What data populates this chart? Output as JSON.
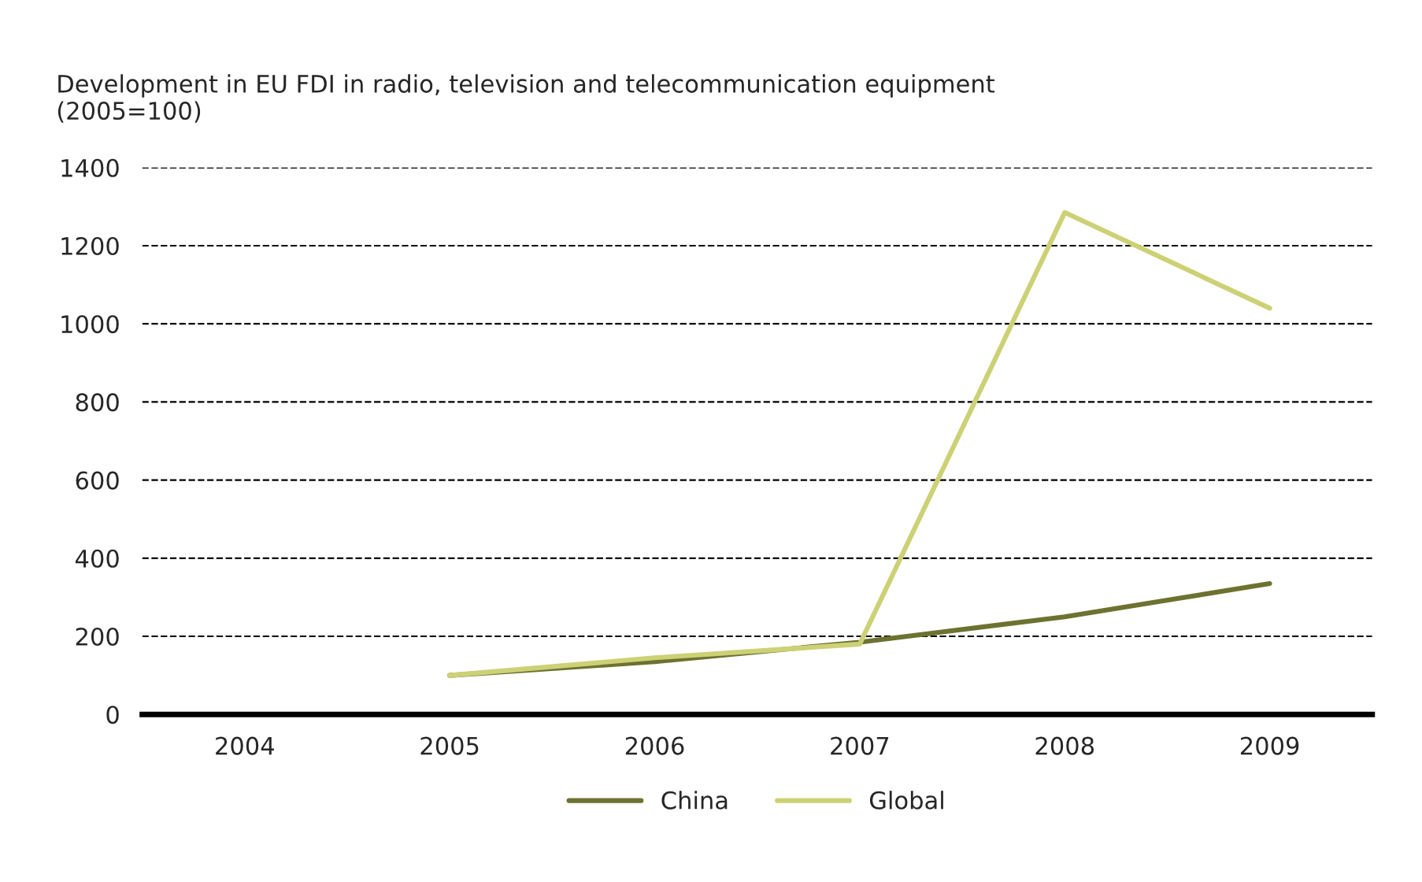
{
  "chart_data": {
    "type": "line",
    "title": "Development in EU FDI in radio, television and telecommunication equipment\n(2005=100)",
    "categories": [
      "2004",
      "2005",
      "2006",
      "2007",
      "2008",
      "2009"
    ],
    "series": [
      {
        "name": "China",
        "color": "#6e7230",
        "values": [
          null,
          100,
          135,
          185,
          250,
          335
        ]
      },
      {
        "name": "Global",
        "color": "#cdd176",
        "values": [
          null,
          100,
          145,
          180,
          1285,
          1040
        ]
      }
    ],
    "ylim": [
      0,
      1400
    ],
    "yticks": [
      0,
      200,
      400,
      600,
      800,
      1000,
      1200,
      1400
    ],
    "grid": "y",
    "legend": "bottom",
    "line_style": "solid",
    "marker": "none"
  }
}
